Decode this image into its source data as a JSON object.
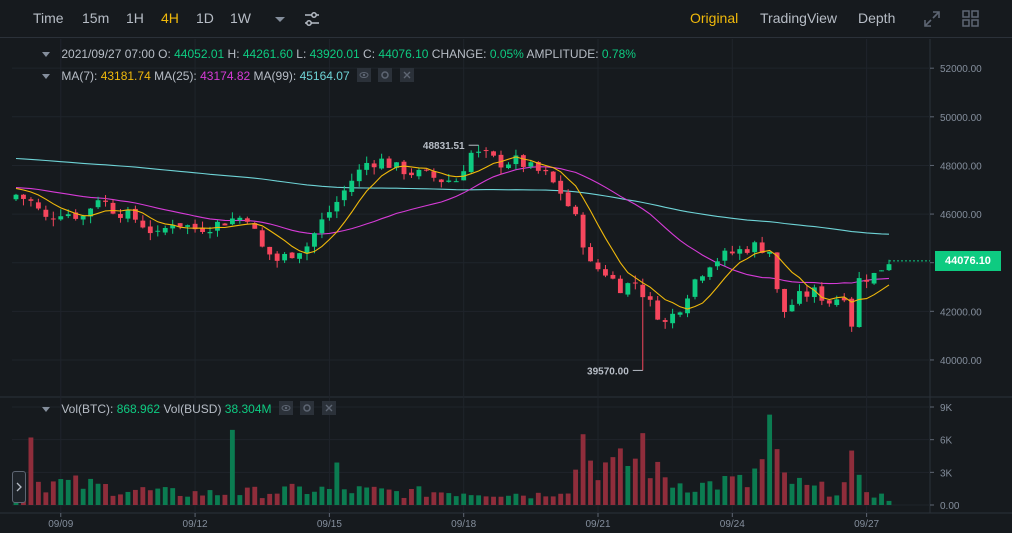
{
  "toolbar": {
    "timeframes": [
      "Time",
      "15m",
      "1H",
      "4H",
      "1D",
      "1W"
    ],
    "active_timeframe": "4H",
    "views": [
      "Original",
      "TradingView",
      "Depth"
    ],
    "active_view": "Original"
  },
  "ohlc": {
    "date": "2021/09/27 07:00",
    "o_label": "O:",
    "o": "44052.01",
    "h_label": "H:",
    "h": "44261.60",
    "l_label": "L:",
    "l": "43920.01",
    "c_label": "C:",
    "c": "44076.10",
    "change_label": "CHANGE:",
    "change": "0.05%",
    "amplitude_label": "AMPLITUDE:",
    "amplitude": "0.78%"
  },
  "ma": {
    "ma7_label": "MA(7):",
    "ma7": "43181.74",
    "ma25_label": "MA(25):",
    "ma25": "43174.82",
    "ma99_label": "MA(99):",
    "ma99": "45164.07"
  },
  "vol": {
    "btc_label": "Vol(BTC):",
    "btc": "868.962",
    "busd_label": "Vol(BUSD)",
    "busd": "38.304M"
  },
  "current_price": "44076.10",
  "colors": {
    "up": "#0ecb81",
    "down": "#f6465d",
    "ma7": "#f0b90b",
    "ma25": "#d63bd7",
    "ma99": "#6ed3d6",
    "accent": "#f0b90b"
  },
  "chart_data": {
    "type": "candlestick",
    "price_axis": {
      "ticks": [
        40000,
        42000,
        44000,
        46000,
        48000,
        50000,
        52000
      ],
      "tick_labels": [
        "40000.00",
        "42000.00",
        "44000.00",
        "46000.00",
        "48000.00",
        "50000.00",
        "52000.00"
      ],
      "range": [
        38600,
        53200
      ]
    },
    "volume_axis": {
      "ticks": [
        0,
        3000,
        6000,
        9000
      ],
      "tick_labels": [
        "0.00",
        "3K",
        "6K",
        "9K"
      ],
      "range": [
        0,
        9000
      ]
    },
    "x_labels": [
      {
        "label": "09/09",
        "index": 6
      },
      {
        "label": "09/12",
        "index": 24
      },
      {
        "label": "09/15",
        "index": 42
      },
      {
        "label": "09/18",
        "index": 60
      },
      {
        "label": "09/21",
        "index": 78
      },
      {
        "label": "09/24",
        "index": 96
      },
      {
        "label": "09/27",
        "index": 114
      }
    ],
    "annotations": [
      {
        "label": "48831.51",
        "value": 48831.51,
        "index": 62
      },
      {
        "label": "39570.00",
        "value": 39570.0,
        "index": 84
      }
    ],
    "anchors": [
      [
        0,
        46800
      ],
      [
        2,
        46500
      ],
      [
        4,
        45800
      ],
      [
        6,
        46100
      ],
      [
        9,
        45900
      ],
      [
        11,
        46700
      ],
      [
        13,
        46200
      ],
      [
        16,
        45800
      ],
      [
        19,
        45100
      ],
      [
        21,
        45700
      ],
      [
        24,
        45400
      ],
      [
        26,
        45500
      ],
      [
        29,
        45800
      ],
      [
        31,
        45900
      ],
      [
        33,
        44600
      ],
      [
        35,
        44100
      ],
      [
        37,
        44400
      ],
      [
        39,
        44700
      ],
      [
        41,
        45700
      ],
      [
        43,
        46500
      ],
      [
        45,
        47400
      ],
      [
        47,
        48100
      ],
      [
        49,
        48200
      ],
      [
        51,
        47900
      ],
      [
        53,
        47700
      ],
      [
        55,
        47600
      ],
      [
        57,
        47400
      ],
      [
        59,
        47400
      ],
      [
        61,
        48500
      ],
      [
        63,
        48400
      ],
      [
        65,
        48100
      ],
      [
        67,
        48200
      ],
      [
        69,
        47900
      ],
      [
        71,
        47600
      ],
      [
        73,
        46900
      ],
      [
        75,
        45800
      ],
      [
        77,
        43900
      ],
      [
        79,
        43600
      ],
      [
        81,
        43000
      ],
      [
        83,
        43200
      ],
      [
        85,
        42300
      ],
      [
        87,
        41500
      ],
      [
        89,
        42200
      ],
      [
        91,
        43300
      ],
      [
        93,
        44000
      ],
      [
        95,
        44300
      ],
      [
        97,
        44500
      ],
      [
        99,
        44700
      ],
      [
        101,
        44500
      ],
      [
        102,
        42800
      ],
      [
        103,
        42000
      ],
      [
        105,
        42600
      ],
      [
        107,
        42800
      ],
      [
        109,
        42400
      ],
      [
        111,
        42700
      ],
      [
        112,
        41500
      ],
      [
        113,
        43300
      ],
      [
        115,
        43500
      ],
      [
        117,
        44076
      ]
    ],
    "volume_profile": [
      [
        0,
        2400
      ],
      [
        8,
        2000
      ],
      [
        12,
        1700
      ],
      [
        20,
        1200
      ],
      [
        28,
        1100
      ],
      [
        34,
        1300
      ],
      [
        40,
        1500
      ],
      [
        46,
        1400
      ],
      [
        52,
        1200
      ],
      [
        58,
        1300
      ],
      [
        64,
        1200
      ],
      [
        70,
        1000
      ],
      [
        74,
        1800
      ],
      [
        76,
        4500
      ],
      [
        78,
        4000
      ],
      [
        80,
        3500
      ],
      [
        84,
        4800
      ],
      [
        86,
        3000
      ],
      [
        88,
        2200
      ],
      [
        92,
        1900
      ],
      [
        96,
        2300
      ],
      [
        98,
        2000
      ],
      [
        101,
        5200
      ],
      [
        103,
        2600
      ],
      [
        106,
        1600
      ],
      [
        110,
        1500
      ],
      [
        112,
        2400
      ],
      [
        114,
        1600
      ],
      [
        117,
        500
      ]
    ],
    "volume_spikes": [
      [
        2,
        6200
      ],
      [
        29,
        6900
      ],
      [
        43,
        3900
      ],
      [
        76,
        6500
      ],
      [
        84,
        6600
      ],
      [
        101,
        8300
      ],
      [
        112,
        5000
      ]
    ]
  }
}
